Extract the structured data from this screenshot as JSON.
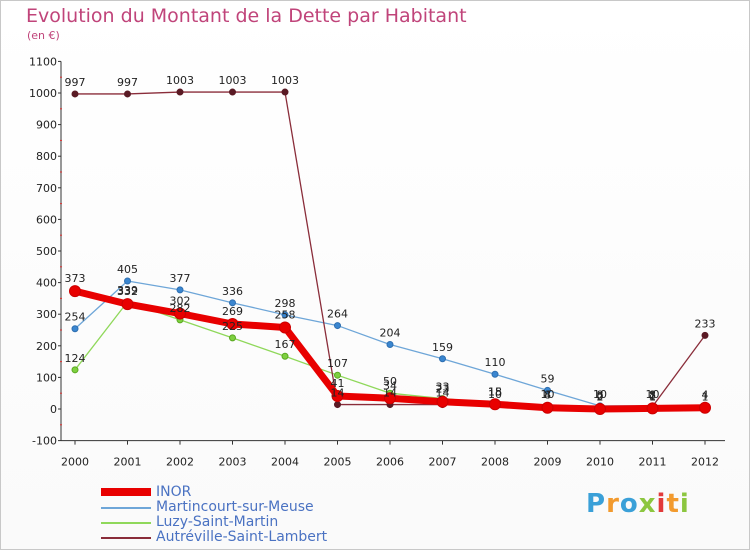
{
  "title": "Evolution du Montant de la Dette par Habitant",
  "unit_label": "(en €)",
  "logo": {
    "text": "Proxiti",
    "colors": [
      "#3aa0d8",
      "#f29a2e",
      "#3aa0d8",
      "#8cc63f",
      "#e23a3a",
      "#f29a2e",
      "#8cc63f"
    ]
  },
  "chart_data": {
    "type": "line",
    "x": [
      "2000",
      "2001",
      "2002",
      "2003",
      "2004",
      "2005",
      "2006",
      "2007",
      "2008",
      "2009",
      "2010",
      "2011",
      "2012"
    ],
    "ylim": [
      -100,
      1100
    ],
    "yticks": [
      -100,
      0,
      100,
      200,
      300,
      400,
      500,
      600,
      700,
      800,
      900,
      1000,
      1100
    ],
    "grid": false,
    "legend_position": "bottom-left",
    "series": [
      {
        "name": "INOR",
        "color": "#e80000",
        "values": [
          373,
          332,
          302,
          269,
          258,
          41,
          34,
          23,
          15,
          4,
          0,
          2,
          4
        ],
        "labels": [
          "373",
          "332",
          "302",
          "269",
          "258",
          "41",
          "34",
          "23",
          "15",
          "4",
          "0",
          "2",
          "4"
        ]
      },
      {
        "name": "Martincourt-sur-Meuse",
        "color": "#6ea6d8",
        "values": [
          254,
          405,
          377,
          336,
          298,
          264,
          204,
          159,
          110,
          59,
          10,
          10,
          null
        ],
        "labels": [
          "254",
          "405",
          "377",
          "336",
          "298",
          "264",
          "204",
          "159",
          "110",
          "59",
          "10",
          "10",
          ""
        ]
      },
      {
        "name": "Luzy-Saint-Martin",
        "color": "#8fd85a",
        "values": [
          124,
          339,
          282,
          225,
          167,
          107,
          50,
          33,
          18,
          8,
          2,
          1,
          1
        ],
        "labels": [
          "124",
          "339",
          "282",
          "225",
          "167",
          "107",
          "50",
          "33",
          "18",
          "8",
          "2",
          "1",
          "1"
        ]
      },
      {
        "name": "Autréville-Saint-Lambert",
        "color": "#8a2d3a",
        "values": [
          997,
          997,
          1003,
          1003,
          1003,
          14,
          14,
          14,
          10,
          10,
          8,
          8,
          233
        ],
        "labels": [
          "997",
          "997",
          "1003",
          "1003",
          "1003",
          "14",
          "14",
          "14",
          "10",
          "10",
          "8",
          "8",
          "233"
        ]
      }
    ]
  }
}
